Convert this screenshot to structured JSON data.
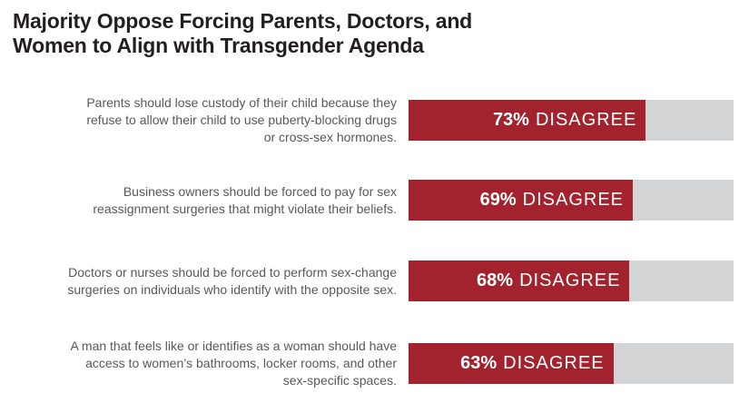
{
  "chart_data": {
    "type": "bar",
    "orientation": "horizontal",
    "title": "Majority Oppose Forcing Parents, Doctors, and\nWomen to Align with Transgender Agenda",
    "categories": [
      "Parents should lose custody of their child because they\nrefuse to allow their child to use puberty-blocking drugs\nor cross-sex hormones.",
      "Business owners should be forced to pay for sex\nreassignment surgeries that might violate their beliefs.",
      "Doctors or nurses should be forced to perform sex-change\nsurgeries on individuals who identify with the opposite sex.",
      "A man that feels like or identifies as a woman should have\naccess to women’s bathrooms, locker rooms, and other\nsex-specific spaces."
    ],
    "values": [
      73,
      69,
      68,
      63
    ],
    "bar_labels": [
      {
        "pct": "73%",
        "text": "DISAGREE"
      },
      {
        "pct": "69%",
        "text": "DISAGREE"
      },
      {
        "pct": "68%",
        "text": "DISAGREE"
      },
      {
        "pct": "63%",
        "text": "DISAGREE"
      }
    ],
    "xlim": [
      0,
      100
    ],
    "grid": false,
    "legend": false,
    "colors": {
      "bar_fill": "#a2232e",
      "bar_track": "#d3d4d5",
      "title_text": "#231f20",
      "statement_text": "#58595b",
      "bar_value_text": "#ffffff"
    }
  }
}
